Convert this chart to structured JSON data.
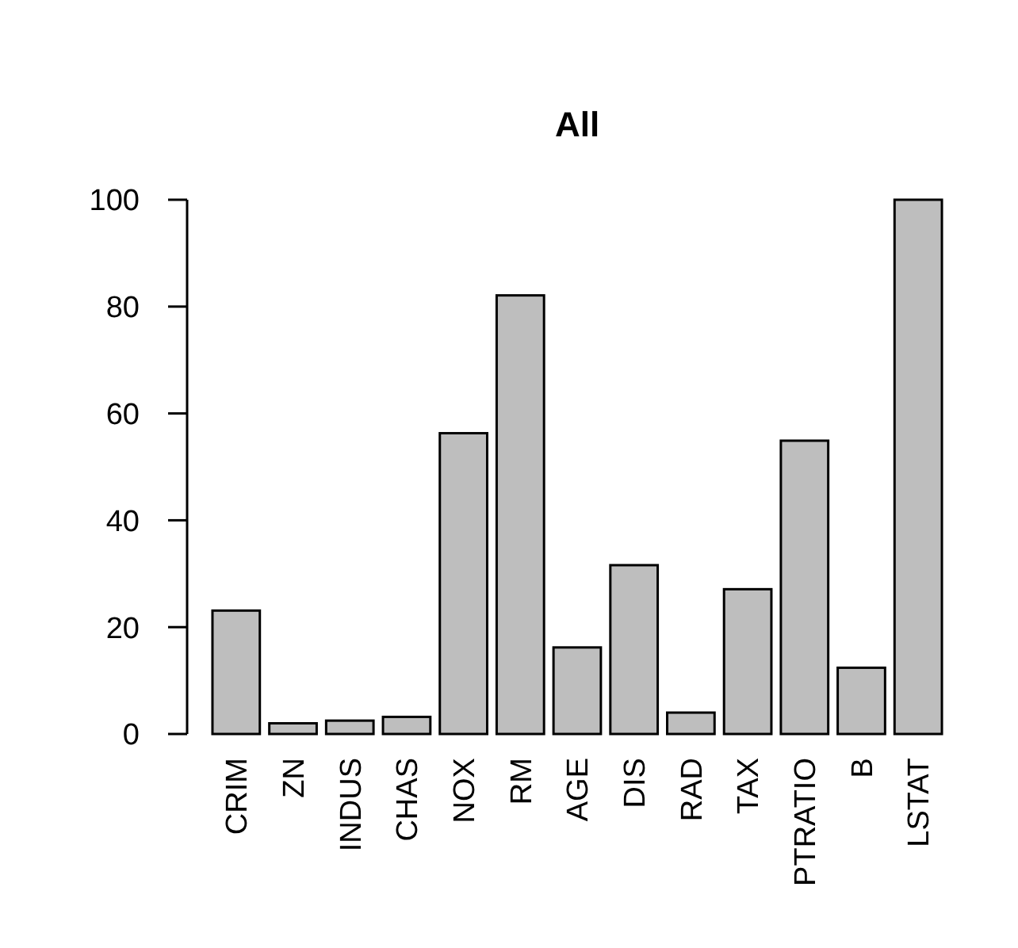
{
  "chart_data": {
    "type": "bar",
    "title": "All",
    "categories": [
      "CRIM",
      "ZN",
      "INDUS",
      "CHAS",
      "NOX",
      "RM",
      "AGE",
      "DIS",
      "RAD",
      "TAX",
      "PTRATIO",
      "B",
      "LSTAT"
    ],
    "values": [
      23.1,
      2.0,
      2.5,
      3.2,
      56.3,
      82.1,
      16.2,
      31.6,
      4.0,
      27.1,
      54.9,
      12.4,
      100
    ],
    "color": "#bebebe",
    "ylim": [
      0,
      100
    ],
    "yticks": [
      0,
      20,
      40,
      60,
      80,
      100
    ],
    "grid": false
  }
}
